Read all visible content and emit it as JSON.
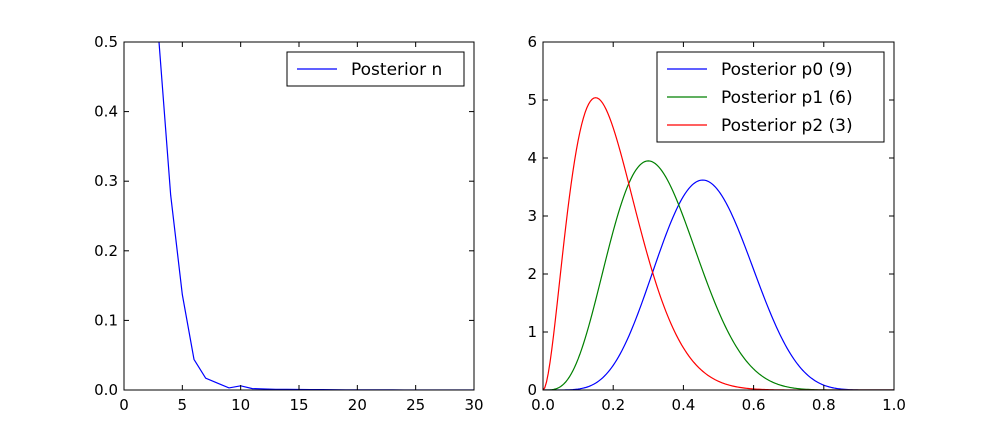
{
  "chart_data": [
    {
      "type": "line",
      "title": "",
      "xlabel": "",
      "ylabel": "",
      "xlim": [
        0,
        30
      ],
      "ylim": [
        0,
        0.5
      ],
      "xticks": [
        "0",
        "5",
        "10",
        "15",
        "20",
        "25",
        "30"
      ],
      "yticks": [
        "0.0",
        "0.1",
        "0.2",
        "0.3",
        "0.4",
        "0.5"
      ],
      "grid": false,
      "legend_position": "top-right",
      "series": [
        {
          "name": "Posterior n",
          "color": "#0000ff",
          "x": [
            3,
            4,
            5,
            6,
            7,
            8,
            9,
            10,
            11,
            12,
            13,
            14,
            15,
            16,
            17,
            18,
            19,
            20,
            21,
            22,
            23,
            24,
            25,
            26,
            27,
            28,
            29,
            30
          ],
          "y": [
            0.5,
            0.28,
            0.137,
            0.044,
            0.017,
            0.01,
            0.003,
            0.006,
            0.002,
            0.0015,
            0.001,
            0.001,
            0.0008,
            0.0006,
            0.0005,
            0.0004,
            0.0003,
            0.0003,
            0.0002,
            0.0002,
            0.0002,
            0.0001,
            0.0001,
            0.0001,
            0.0001,
            0.0001,
            0.0001,
            0.0001
          ]
        }
      ]
    },
    {
      "type": "line",
      "title": "",
      "xlabel": "",
      "ylabel": "",
      "xlim": [
        0,
        1
      ],
      "ylim": [
        0,
        6
      ],
      "xticks": [
        "0.0",
        "0.2",
        "0.4",
        "0.6",
        "0.8",
        "1.0"
      ],
      "yticks": [
        "0",
        "1",
        "2",
        "3",
        "4",
        "5",
        "6"
      ],
      "grid": false,
      "legend_position": "top-right",
      "series": [
        {
          "name": "Posterior p0 (9)",
          "color": "#0000ff",
          "peak_x": 0.455,
          "peak_y": 3.62
        },
        {
          "name": "Posterior p1 (6)",
          "color": "#008000",
          "peak_x": 0.3,
          "peak_y": 3.95
        },
        {
          "name": "Posterior p2 (3)",
          "color": "#ff0000",
          "peak_x": 0.15,
          "peak_y": 5.04
        }
      ]
    }
  ]
}
